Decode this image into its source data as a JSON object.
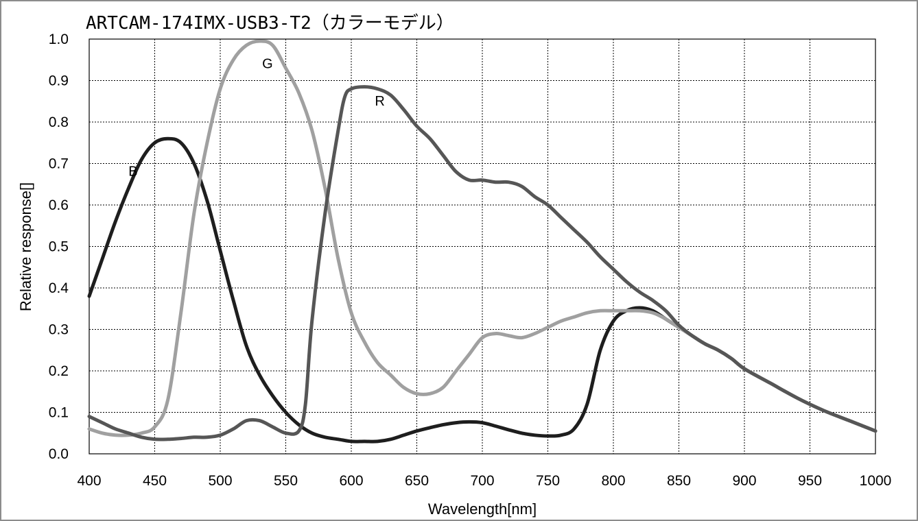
{
  "chart_data": {
    "type": "line",
    "title": "ARTCAM-174IMX-USB3-T2（カラーモデル）",
    "xlabel": "Wavelength[nm]",
    "ylabel": "Relative response[]",
    "xlim": [
      400,
      1000
    ],
    "ylim": [
      0,
      1.0
    ],
    "x_ticks": [
      "400",
      "450",
      "500",
      "550",
      "600",
      "650",
      "700",
      "750",
      "800",
      "850",
      "900",
      "950",
      "1000"
    ],
    "y_ticks": [
      "0.0",
      "0.1",
      "0.2",
      "0.3",
      "0.4",
      "0.5",
      "0.6",
      "0.7",
      "0.8",
      "0.9",
      "1.0"
    ],
    "grid": true,
    "series": [
      {
        "name": "B",
        "color": "#1e1e1e",
        "label_at": [
          430,
          0.67
        ],
        "points": [
          [
            400,
            0.38
          ],
          [
            410,
            0.47
          ],
          [
            420,
            0.56
          ],
          [
            430,
            0.64
          ],
          [
            440,
            0.71
          ],
          [
            450,
            0.75
          ],
          [
            460,
            0.76
          ],
          [
            470,
            0.75
          ],
          [
            480,
            0.7
          ],
          [
            490,
            0.61
          ],
          [
            500,
            0.49
          ],
          [
            510,
            0.37
          ],
          [
            520,
            0.26
          ],
          [
            530,
            0.19
          ],
          [
            540,
            0.14
          ],
          [
            550,
            0.1
          ],
          [
            560,
            0.07
          ],
          [
            570,
            0.05
          ],
          [
            580,
            0.04
          ],
          [
            590,
            0.035
          ],
          [
            600,
            0.03
          ],
          [
            610,
            0.03
          ],
          [
            620,
            0.03
          ],
          [
            630,
            0.035
          ],
          [
            640,
            0.045
          ],
          [
            650,
            0.055
          ],
          [
            660,
            0.063
          ],
          [
            670,
            0.07
          ],
          [
            680,
            0.075
          ],
          [
            690,
            0.077
          ],
          [
            700,
            0.075
          ],
          [
            710,
            0.067
          ],
          [
            720,
            0.058
          ],
          [
            730,
            0.05
          ],
          [
            740,
            0.045
          ],
          [
            750,
            0.043
          ],
          [
            760,
            0.045
          ],
          [
            770,
            0.06
          ],
          [
            780,
            0.12
          ],
          [
            790,
            0.25
          ],
          [
            800,
            0.32
          ],
          [
            810,
            0.345
          ],
          [
            820,
            0.352
          ],
          [
            830,
            0.345
          ],
          [
            840,
            0.325
          ],
          [
            850,
            0.305
          ],
          [
            860,
            0.285
          ],
          [
            870,
            0.265
          ],
          [
            880,
            0.25
          ],
          [
            890,
            0.23
          ],
          [
            900,
            0.205
          ],
          [
            920,
            0.17
          ],
          [
            940,
            0.135
          ],
          [
            960,
            0.105
          ],
          [
            980,
            0.08
          ],
          [
            1000,
            0.055
          ]
        ]
      },
      {
        "name": "G",
        "color": "#a0a0a0",
        "label_at": [
          532,
          0.93
        ],
        "points": [
          [
            400,
            0.06
          ],
          [
            410,
            0.05
          ],
          [
            420,
            0.045
          ],
          [
            430,
            0.045
          ],
          [
            440,
            0.05
          ],
          [
            450,
            0.065
          ],
          [
            460,
            0.13
          ],
          [
            470,
            0.34
          ],
          [
            480,
            0.58
          ],
          [
            490,
            0.75
          ],
          [
            500,
            0.88
          ],
          [
            510,
            0.95
          ],
          [
            520,
            0.985
          ],
          [
            530,
            0.995
          ],
          [
            540,
            0.985
          ],
          [
            550,
            0.93
          ],
          [
            560,
            0.87
          ],
          [
            570,
            0.78
          ],
          [
            580,
            0.64
          ],
          [
            590,
            0.47
          ],
          [
            600,
            0.34
          ],
          [
            610,
            0.27
          ],
          [
            620,
            0.22
          ],
          [
            630,
            0.19
          ],
          [
            640,
            0.16
          ],
          [
            650,
            0.145
          ],
          [
            660,
            0.145
          ],
          [
            670,
            0.16
          ],
          [
            680,
            0.2
          ],
          [
            690,
            0.24
          ],
          [
            700,
            0.28
          ],
          [
            710,
            0.29
          ],
          [
            720,
            0.285
          ],
          [
            730,
            0.28
          ],
          [
            740,
            0.29
          ],
          [
            750,
            0.305
          ],
          [
            760,
            0.32
          ],
          [
            770,
            0.33
          ],
          [
            780,
            0.34
          ],
          [
            790,
            0.345
          ],
          [
            800,
            0.345
          ],
          [
            810,
            0.345
          ],
          [
            820,
            0.345
          ],
          [
            830,
            0.34
          ],
          [
            840,
            0.325
          ],
          [
            850,
            0.305
          ],
          [
            860,
            0.285
          ],
          [
            870,
            0.265
          ],
          [
            880,
            0.25
          ],
          [
            890,
            0.23
          ],
          [
            900,
            0.205
          ],
          [
            920,
            0.17
          ],
          [
            940,
            0.135
          ],
          [
            960,
            0.105
          ],
          [
            980,
            0.08
          ],
          [
            1000,
            0.055
          ]
        ]
      },
      {
        "name": "R",
        "color": "#565656",
        "label_at": [
          618,
          0.84
        ],
        "points": [
          [
            400,
            0.09
          ],
          [
            410,
            0.075
          ],
          [
            420,
            0.06
          ],
          [
            430,
            0.05
          ],
          [
            440,
            0.04
          ],
          [
            450,
            0.035
          ],
          [
            460,
            0.035
          ],
          [
            470,
            0.037
          ],
          [
            480,
            0.04
          ],
          [
            490,
            0.04
          ],
          [
            500,
            0.045
          ],
          [
            510,
            0.06
          ],
          [
            520,
            0.08
          ],
          [
            530,
            0.08
          ],
          [
            540,
            0.065
          ],
          [
            550,
            0.05
          ],
          [
            560,
            0.055
          ],
          [
            565,
            0.12
          ],
          [
            570,
            0.32
          ],
          [
            580,
            0.58
          ],
          [
            590,
            0.78
          ],
          [
            595,
            0.86
          ],
          [
            600,
            0.88
          ],
          [
            610,
            0.885
          ],
          [
            620,
            0.88
          ],
          [
            630,
            0.865
          ],
          [
            640,
            0.83
          ],
          [
            650,
            0.79
          ],
          [
            660,
            0.76
          ],
          [
            670,
            0.72
          ],
          [
            680,
            0.68
          ],
          [
            690,
            0.66
          ],
          [
            700,
            0.66
          ],
          [
            710,
            0.655
          ],
          [
            720,
            0.655
          ],
          [
            730,
            0.645
          ],
          [
            740,
            0.62
          ],
          [
            750,
            0.6
          ],
          [
            760,
            0.57
          ],
          [
            770,
            0.54
          ],
          [
            780,
            0.51
          ],
          [
            790,
            0.475
          ],
          [
            800,
            0.445
          ],
          [
            810,
            0.415
          ],
          [
            820,
            0.39
          ],
          [
            830,
            0.37
          ],
          [
            840,
            0.345
          ],
          [
            850,
            0.31
          ],
          [
            860,
            0.285
          ],
          [
            870,
            0.265
          ],
          [
            880,
            0.25
          ],
          [
            890,
            0.23
          ],
          [
            900,
            0.205
          ],
          [
            920,
            0.17
          ],
          [
            940,
            0.135
          ],
          [
            960,
            0.105
          ],
          [
            980,
            0.08
          ],
          [
            1000,
            0.055
          ]
        ]
      }
    ]
  }
}
